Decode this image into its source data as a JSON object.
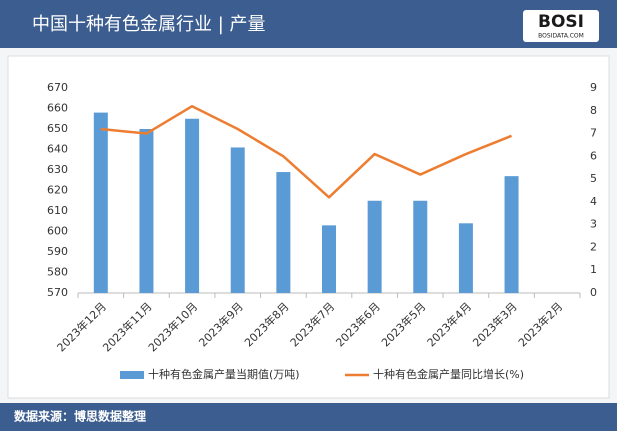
{
  "chart_data": {
    "type": "bar",
    "title": "中国十种有色金属行业 | 产量",
    "categories": [
      "2023年12月",
      "2023年11月",
      "2023年10月",
      "2023年9月",
      "2023年8月",
      "2023年7月",
      "2023年6月",
      "2023年5月",
      "2023年4月",
      "2023年3月",
      "2023年2月"
    ],
    "series": [
      {
        "name": "十种有色金属产量当期值(万吨)",
        "type": "bar",
        "color": "#5b9bd5",
        "values": [
          658,
          650,
          655,
          641,
          629,
          603,
          615,
          615,
          604,
          627,
          null
        ]
      },
      {
        "name": "十种有色金属产量同比增长(%)",
        "type": "line",
        "axis": "y2",
        "color": "#ed7d31",
        "values": [
          7.2,
          7.0,
          8.2,
          7.2,
          6.0,
          4.2,
          6.1,
          5.2,
          6.1,
          6.9,
          null
        ]
      }
    ],
    "ylim": [
      570,
      670
    ],
    "yticks": [
      570,
      580,
      590,
      600,
      610,
      620,
      630,
      640,
      650,
      660,
      670
    ],
    "y2lim": [
      0,
      9
    ],
    "y2ticks": [
      0,
      1,
      2,
      3,
      4,
      5,
      6,
      7,
      8,
      9
    ],
    "legend": "bottom",
    "source": "数据来源：博思数据整理"
  },
  "logo": {
    "text": "BOSI",
    "subtext": "BOSIDATA.COM"
  }
}
